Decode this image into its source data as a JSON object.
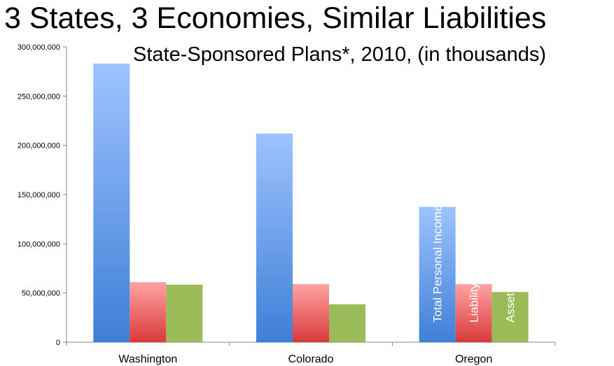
{
  "title": "3 States, 3 Economies, Similar Liabilities",
  "subtitle": "State-Sponsored Plans*, 2010, (in thousands)",
  "colors": {
    "income_top": "#9dc3ff",
    "income_bottom": "#3f7fd6",
    "liability_top": "#ffa3a3",
    "liability_bottom": "#d93a3a",
    "assets": "#9bbb59"
  },
  "chart_data": {
    "type": "bar",
    "categories": [
      "Washington",
      "Colorado",
      "Oregon"
    ],
    "series": [
      {
        "name": "Total Personal Income",
        "values": [
          283000000,
          212000000,
          137500000
        ]
      },
      {
        "name": "Liability",
        "values": [
          61000000,
          59000000,
          59000000
        ]
      },
      {
        "name": "Assets",
        "values": [
          58500000,
          38500000,
          51000000
        ]
      }
    ],
    "ylim": [
      0,
      300000000
    ],
    "yticks": [
      {
        "value": 0,
        "label": "0"
      },
      {
        "value": 50000000,
        "label": "50,000,000"
      },
      {
        "value": 100000000,
        "label": "100,000,000"
      },
      {
        "value": 150000000,
        "label": "150,000,000"
      },
      {
        "value": 200000000,
        "label": "200,000,000"
      },
      {
        "value": 250000000,
        "label": "250,000,000"
      },
      {
        "value": 300000000,
        "label": "300,000,000"
      }
    ],
    "bar_labels_category": "Oregon",
    "grid": false,
    "legend": "none"
  }
}
